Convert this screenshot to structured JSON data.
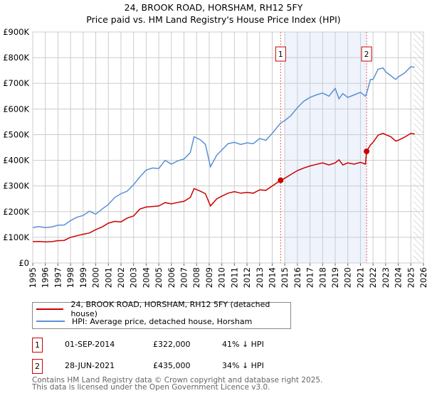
{
  "chart_data": {
    "type": "line",
    "title": "24, BROOK ROAD, HORSHAM, RH12 5FY",
    "subtitle": "Price paid vs. HM Land Registry's House Price Index (HPI)",
    "xlim": [
      1995,
      2026
    ],
    "ylim": [
      0,
      900000
    ],
    "x_ticks": [
      "1995",
      "1996",
      "1997",
      "1998",
      "1999",
      "2000",
      "2001",
      "2002",
      "2003",
      "2004",
      "2005",
      "2006",
      "2007",
      "2008",
      "2009",
      "2010",
      "2011",
      "2012",
      "2013",
      "2014",
      "2015",
      "2016",
      "2017",
      "2018",
      "2019",
      "2020",
      "2021",
      "2022",
      "2023",
      "2024",
      "2025",
      "2026"
    ],
    "y_ticks": [
      {
        "v": 0,
        "label": "£0"
      },
      {
        "v": 100000,
        "label": "£100K"
      },
      {
        "v": 200000,
        "label": "£200K"
      },
      {
        "v": 300000,
        "label": "£300K"
      },
      {
        "v": 400000,
        "label": "£400K"
      },
      {
        "v": 500000,
        "label": "£500K"
      },
      {
        "v": 600000,
        "label": "£600K"
      },
      {
        "v": 700000,
        "label": "£700K"
      },
      {
        "v": 800000,
        "label": "£800K"
      },
      {
        "v": 900000,
        "label": "£900K"
      }
    ],
    "grid": true,
    "shaded_range": [
      2014.67,
      2021.49
    ],
    "forecast_hatch_from": 2025.2,
    "series": [
      {
        "name": "24, BROOK ROAD, HORSHAM, RH12 5FY (detached house)",
        "color": "#cc0000",
        "x": [
          1995,
          1995.5,
          1996,
          1996.5,
          1997,
          1997.5,
          1998,
          1998.5,
          1999,
          1999.5,
          2000,
          2000.5,
          2001,
          2001.5,
          2002,
          2002.5,
          2003,
          2003.5,
          2004,
          2004.5,
          2005,
          2005.5,
          2006,
          2006.5,
          2007,
          2007.5,
          2007.8,
          2008.3,
          2008.7,
          2009.1,
          2009.6,
          2010,
          2010.5,
          2011,
          2011.5,
          2012,
          2012.5,
          2013,
          2013.5,
          2014,
          2014.67,
          2015,
          2015.5,
          2016,
          2016.5,
          2017,
          2017.5,
          2018,
          2018.5,
          2019,
          2019.3,
          2019.6,
          2020,
          2020.5,
          2021,
          2021.4,
          2021.49,
          2021.8,
          2022,
          2022.4,
          2022.8,
          2023,
          2023.4,
          2023.8,
          2024,
          2024.5,
          2025,
          2025.3
        ],
        "y": [
          83000,
          84000,
          82000,
          83000,
          87000,
          88000,
          100000,
          106000,
          112000,
          117000,
          130000,
          140000,
          155000,
          162000,
          160000,
          175000,
          183000,
          210000,
          218000,
          220000,
          222000,
          235000,
          230000,
          236000,
          240000,
          255000,
          290000,
          280000,
          270000,
          222000,
          250000,
          260000,
          272000,
          278000,
          272000,
          275000,
          272000,
          285000,
          283000,
          300000,
          322000,
          330000,
          345000,
          360000,
          370000,
          378000,
          384000,
          390000,
          382000,
          390000,
          402000,
          382000,
          390000,
          385000,
          392000,
          385000,
          435000,
          460000,
          470000,
          498000,
          505000,
          500000,
          492000,
          475000,
          478000,
          490000,
          505000,
          503000
        ]
      },
      {
        "name": "HPI: Average price, detached house, Horsham",
        "color": "#5b8fd4",
        "x": [
          1995,
          1995.5,
          1996,
          1996.5,
          1997,
          1997.5,
          1998,
          1998.5,
          1999,
          1999.5,
          2000,
          2000.5,
          2001,
          2001.5,
          2002,
          2002.5,
          2003,
          2003.5,
          2004,
          2004.5,
          2005,
          2005.5,
          2006,
          2006.5,
          2007,
          2007.5,
          2007.8,
          2008.3,
          2008.7,
          2009.1,
          2009.6,
          2010,
          2010.5,
          2011,
          2011.5,
          2012,
          2012.5,
          2013,
          2013.5,
          2014,
          2014.67,
          2015,
          2015.5,
          2016,
          2016.5,
          2017,
          2017.5,
          2018,
          2018.5,
          2019,
          2019.3,
          2019.6,
          2020,
          2020.5,
          2021,
          2021.4,
          2021.49,
          2021.8,
          2022,
          2022.4,
          2022.8,
          2023,
          2023.4,
          2023.8,
          2024,
          2024.5,
          2025,
          2025.3
        ],
        "y": [
          138000,
          142000,
          138000,
          140000,
          147000,
          148000,
          165000,
          178000,
          185000,
          202000,
          190000,
          210000,
          228000,
          255000,
          270000,
          280000,
          305000,
          335000,
          362000,
          370000,
          368000,
          400000,
          385000,
          398000,
          405000,
          430000,
          492000,
          480000,
          462000,
          375000,
          420000,
          440000,
          465000,
          470000,
          462000,
          468000,
          465000,
          485000,
          478000,
          505000,
          545000,
          555000,
          575000,
          605000,
          630000,
          645000,
          655000,
          662000,
          650000,
          680000,
          640000,
          660000,
          645000,
          655000,
          665000,
          650000,
          660000,
          715000,
          715000,
          755000,
          760000,
          745000,
          730000,
          715000,
          725000,
          740000,
          765000,
          762000
        ]
      }
    ],
    "sales": [
      {
        "id": "1",
        "x": 2014.67,
        "y": 322000
      },
      {
        "id": "2",
        "x": 2021.49,
        "y": 435000
      }
    ]
  },
  "legend": [
    {
      "label": "24, BROOK ROAD, HORSHAM, RH12 5FY (detached house)",
      "color": "#cc0000"
    },
    {
      "label": "HPI: Average price, detached house, Horsham",
      "color": "#5b8fd4"
    }
  ],
  "transactions": [
    {
      "id": "1",
      "date": "01-SEP-2014",
      "price": "£322,000",
      "delta": "41% ↓ HPI"
    },
    {
      "id": "2",
      "date": "28-JUN-2021",
      "price": "£435,000",
      "delta": "34% ↓ HPI"
    }
  ],
  "footer": {
    "line1": "Contains HM Land Registry data © Crown copyright and database right 2025.",
    "line2": "This data is licensed under the Open Government Licence v3.0."
  }
}
